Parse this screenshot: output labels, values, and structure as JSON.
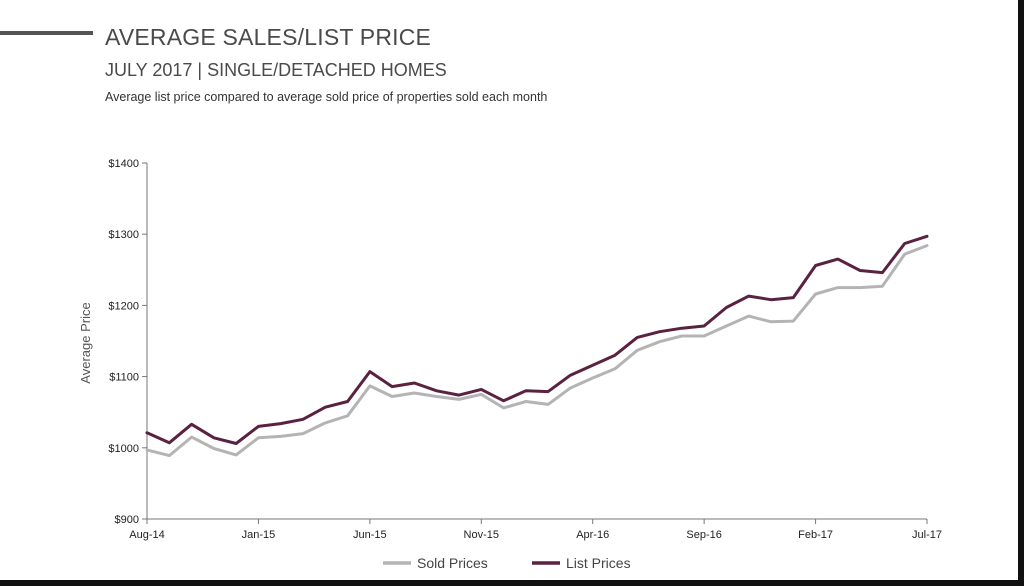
{
  "header": {
    "title": "AVERAGE SALES/LIST PRICE",
    "subtitle": "JULY 2017 | SINGLE/DETACHED HOMES",
    "description": "Average list price compared to average sold price of properties sold each month"
  },
  "chart_data": {
    "type": "line",
    "ylabel": "Average Price",
    "xlabel": "",
    "ylim": [
      900,
      1400
    ],
    "yticks": [
      900,
      1000,
      1100,
      1200,
      1300,
      1400
    ],
    "ytick_labels": [
      "$900",
      "$1000",
      "$1100",
      "$1200",
      "$1300",
      "$1400"
    ],
    "x": [
      "Aug-14",
      "Sep-14",
      "Oct-14",
      "Nov-14",
      "Dec-14",
      "Jan-15",
      "Feb-15",
      "Mar-15",
      "Apr-15",
      "May-15",
      "Jun-15",
      "Jul-15",
      "Aug-15",
      "Sep-15",
      "Oct-15",
      "Nov-15",
      "Dec-15",
      "Jan-16",
      "Feb-16",
      "Mar-16",
      "Apr-16",
      "May-16",
      "Jun-16",
      "Jul-16",
      "Aug-16",
      "Sep-16",
      "Oct-16",
      "Nov-16",
      "Dec-16",
      "Jan-17",
      "Feb-17",
      "Mar-17",
      "Apr-17",
      "May-17",
      "Jun-17",
      "Jul-17"
    ],
    "xtick_labels": [
      "Aug-14",
      "Jan-15",
      "Jun-15",
      "Nov-15",
      "Apr-16",
      "Sep-16",
      "Feb-17",
      "Jul-17"
    ],
    "legend_position": "bottom",
    "series": [
      {
        "name": "Sold Prices",
        "color": "#b4b4b4",
        "values": [
          997,
          989,
          1015,
          999,
          990,
          1014,
          1016,
          1020,
          1035,
          1045,
          1087,
          1072,
          1077,
          1072,
          1068,
          1075,
          1056,
          1065,
          1061,
          1084,
          1098,
          1111,
          1137,
          1149,
          1157,
          1157,
          1171,
          1185,
          1177,
          1178,
          1216,
          1225,
          1225,
          1227,
          1272,
          1284
        ]
      },
      {
        "name": "List Prices",
        "color": "#5a2140",
        "values": [
          1021,
          1007,
          1033,
          1014,
          1006,
          1030,
          1034,
          1040,
          1057,
          1065,
          1107,
          1086,
          1091,
          1080,
          1074,
          1082,
          1066,
          1080,
          1079,
          1102,
          1116,
          1130,
          1155,
          1163,
          1168,
          1171,
          1197,
          1213,
          1208,
          1211,
          1256,
          1265,
          1249,
          1246,
          1287,
          1297
        ]
      }
    ]
  }
}
